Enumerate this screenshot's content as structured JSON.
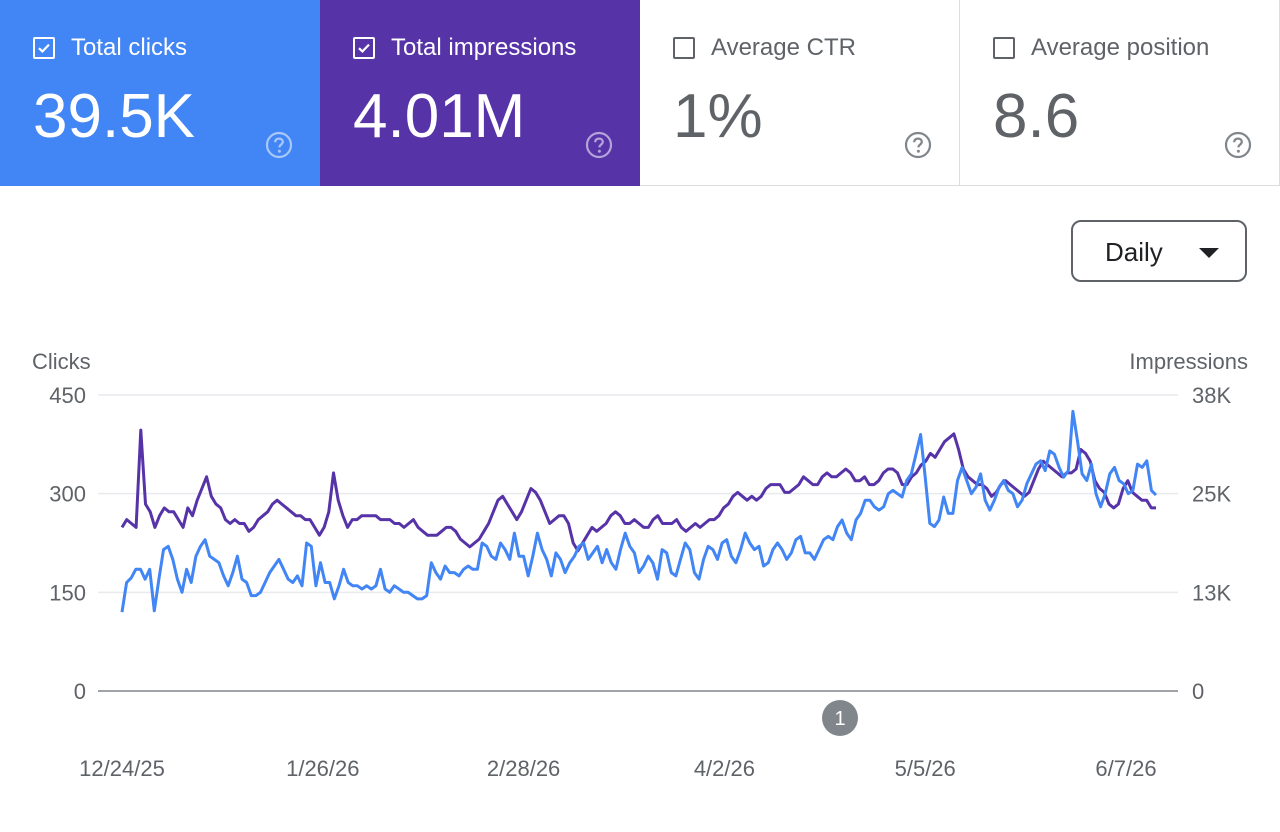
{
  "cards": [
    {
      "label": "Total clicks",
      "value": "39.5K",
      "checked": true,
      "color": "#4285f4"
    },
    {
      "label": "Total impressions",
      "value": "4.01M",
      "checked": true,
      "color": "#5733a8"
    },
    {
      "label": "Average CTR",
      "value": "1%",
      "checked": false
    },
    {
      "label": "Average position",
      "value": "8.6",
      "checked": false
    }
  ],
  "icons": {
    "help": "help-circle-icon",
    "checkbox": "checkbox-icon",
    "caret": "caret-down-icon"
  },
  "dropdown": {
    "label": "Daily"
  },
  "annotation": {
    "label": "1"
  },
  "chart_data": {
    "type": "line",
    "left_axis": {
      "label": "Clicks",
      "ticks": [
        "450",
        "300",
        "150",
        "0"
      ],
      "range": [
        0,
        450
      ]
    },
    "right_axis": {
      "label": "Impressions",
      "ticks": [
        "38K",
        "25K",
        "13K",
        "0"
      ],
      "range": [
        0,
        38000
      ]
    },
    "x_ticks": [
      "12/24/25",
      "1/26/26",
      "2/28/26",
      "4/2/26",
      "5/5/26",
      "6/7/26"
    ],
    "grid": true,
    "series": [
      {
        "name": "Clicks",
        "axis": "left",
        "color": "#4285f4",
        "values": [
          120,
          165,
          172,
          185,
          185,
          170,
          185,
          122,
          170,
          215,
          220,
          200,
          170,
          150,
          185,
          165,
          205,
          220,
          230,
          205,
          200,
          195,
          175,
          160,
          180,
          205,
          170,
          165,
          145,
          145,
          150,
          165,
          180,
          190,
          200,
          185,
          170,
          165,
          175,
          160,
          225,
          220,
          160,
          195,
          165,
          165,
          140,
          160,
          185,
          165,
          160,
          160,
          155,
          160,
          155,
          160,
          185,
          155,
          150,
          160,
          155,
          150,
          150,
          145,
          140,
          140,
          145,
          195,
          180,
          170,
          190,
          180,
          180,
          175,
          185,
          190,
          185,
          185,
          225,
          220,
          205,
          200,
          225,
          215,
          200,
          240,
          205,
          205,
          175,
          205,
          240,
          215,
          200,
          175,
          210,
          200,
          180,
          195,
          205,
          220,
          225,
          200,
          210,
          220,
          195,
          215,
          195,
          185,
          215,
          240,
          220,
          210,
          180,
          190,
          205,
          195,
          170,
          215,
          210,
          180,
          175,
          200,
          225,
          215,
          180,
          170,
          200,
          220,
          215,
          200,
          225,
          230,
          205,
          195,
          215,
          240,
          225,
          215,
          220,
          190,
          195,
          215,
          225,
          215,
          200,
          210,
          230,
          235,
          210,
          210,
          200,
          215,
          230,
          235,
          230,
          250,
          260,
          240,
          230,
          260,
          270,
          290,
          290,
          280,
          275,
          280,
          300,
          305,
          300,
          295,
          320,
          330,
          360,
          390,
          325,
          255,
          250,
          260,
          295,
          270,
          270,
          320,
          340,
          320,
          300,
          310,
          330,
          290,
          275,
          290,
          310,
          320,
          305,
          300,
          280,
          290,
          315,
          330,
          345,
          350,
          335,
          365,
          360,
          340,
          325,
          335,
          425,
          380,
          330,
          320,
          345,
          300,
          280,
          300,
          330,
          340,
          320,
          315,
          300,
          305,
          345,
          340,
          350,
          305,
          298
        ]
      },
      {
        "name": "Impressions",
        "axis": "right",
        "color": "#5733a8",
        "values": [
          21000,
          22000,
          21500,
          21000,
          33500,
          24000,
          23000,
          21000,
          22500,
          23500,
          23000,
          23000,
          22000,
          21000,
          23500,
          22500,
          24500,
          26000,
          27500,
          25000,
          24000,
          23500,
          22000,
          21500,
          22000,
          21500,
          21500,
          20500,
          21000,
          22000,
          22500,
          23000,
          24000,
          24500,
          24000,
          23500,
          23000,
          22500,
          22500,
          22000,
          22000,
          21000,
          20000,
          21000,
          23000,
          28000,
          24500,
          22500,
          21000,
          22000,
          22000,
          22500,
          22500,
          22500,
          22500,
          22000,
          22000,
          22000,
          21500,
          21500,
          21000,
          21500,
          22000,
          21000,
          20500,
          20000,
          20000,
          20000,
          20500,
          21000,
          21000,
          20500,
          19500,
          19000,
          18500,
          19000,
          19500,
          20500,
          21500,
          23000,
          24500,
          25000,
          24000,
          23000,
          22000,
          23000,
          24500,
          26000,
          25500,
          24500,
          23000,
          21500,
          22000,
          22500,
          22500,
          21500,
          19000,
          18000,
          19000,
          20000,
          21000,
          20500,
          21000,
          21500,
          22500,
          23000,
          22500,
          21500,
          21500,
          22000,
          21500,
          21000,
          21000,
          22000,
          22500,
          21500,
          21500,
          21500,
          22000,
          21000,
          20500,
          21000,
          21500,
          21000,
          21500,
          22000,
          22000,
          22500,
          23500,
          24000,
          25000,
          25500,
          25000,
          24500,
          25000,
          24500,
          25000,
          26000,
          26500,
          26500,
          26500,
          25500,
          25500,
          26000,
          26500,
          27500,
          27000,
          26500,
          26500,
          27500,
          28000,
          27500,
          27500,
          28000,
          28500,
          28000,
          27000,
          27000,
          27500,
          26500,
          26500,
          27000,
          28000,
          28500,
          28500,
          28000,
          26500,
          26500,
          27500,
          28000,
          29000,
          29500,
          30500,
          30000,
          31000,
          32000,
          32500,
          33000,
          31000,
          28500,
          27500,
          27000,
          26500,
          26500,
          26000,
          25000,
          25500,
          26500,
          27000,
          26500,
          26000,
          25500,
          25000,
          25500,
          27000,
          28500,
          29500,
          29000,
          28500,
          28000,
          27500,
          28000,
          28000,
          28500,
          31000,
          30500,
          29500,
          27000,
          26000,
          25500,
          24000,
          23500,
          24000,
          26000,
          27000,
          25500,
          25000,
          24500,
          24500,
          23500,
          23500
        ]
      }
    ]
  }
}
